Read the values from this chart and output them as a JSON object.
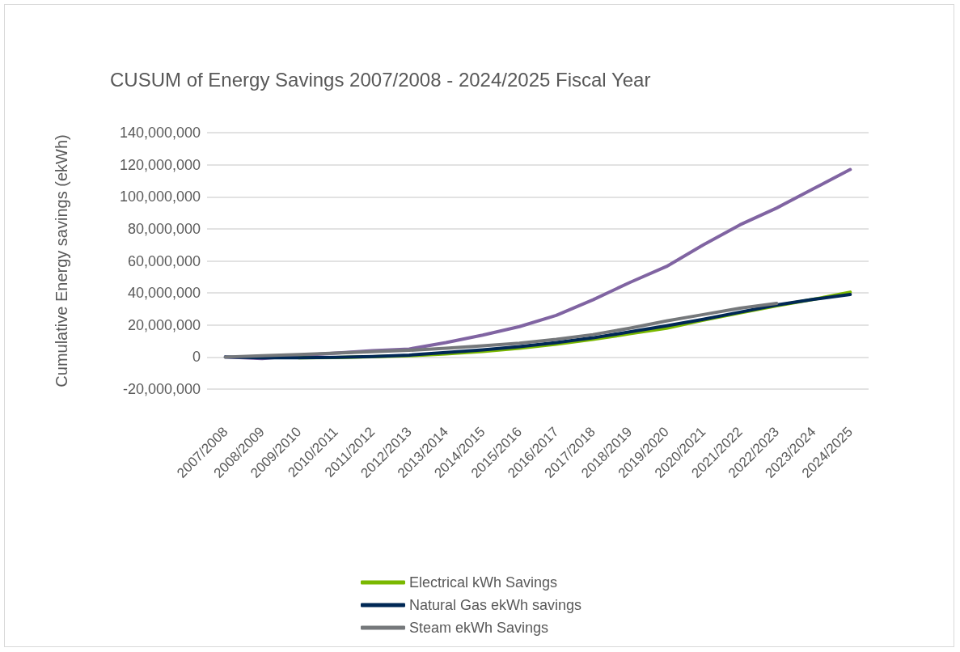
{
  "chart_data": {
    "type": "line",
    "title": "CUSUM of Energy Savings 2007/2008 - 2024/2025 Fiscal Year",
    "ylabel": "Cumulative Energy savings (ekWh)",
    "categories": [
      "2007/2008",
      "2008/2009",
      "2009/2010",
      "2010/2011",
      "2011/2012",
      "2012/2013",
      "2013/2014",
      "2014/2015",
      "2015/2016",
      "2016/2017",
      "2017/2018",
      "2018/2019",
      "2019/2020",
      "2020/2021",
      "2021/2022",
      "2022/2023",
      "2023/2024",
      "2024/2025"
    ],
    "series": [
      {
        "name": "Electrical kWh Savings",
        "color": "#7ab800",
        "values": [
          null,
          null,
          -500000,
          -300000,
          200000,
          800000,
          2000000,
          3500000,
          5500000,
          8000000,
          11000000,
          14500000,
          18000000,
          23000000,
          27500000,
          32000000,
          36000000,
          40500000
        ]
      },
      {
        "name": "Natural Gas ekWh savings",
        "color": "#002855",
        "values": [
          0,
          -500000,
          -400000,
          -200000,
          300000,
          1200000,
          2800000,
          4500000,
          6500000,
          9000000,
          12000000,
          15700000,
          19500000,
          23500000,
          28000000,
          32500000,
          36000000,
          39000000
        ]
      },
      {
        "name": "Steam ekWh Savings",
        "color": "#75787b",
        "values": [
          0,
          800000,
          1600000,
          2500000,
          3300000,
          4200000,
          5500000,
          7000000,
          8700000,
          11000000,
          14000000,
          18000000,
          22500000,
          26500000,
          30500000,
          33500000,
          null,
          null
        ]
      },
      {
        "color": "#8064a2",
        "values": [
          0,
          -1000000,
          1000000,
          2500000,
          4000000,
          5000000,
          9000000,
          13700000,
          19000000,
          26000000,
          35700000,
          46500000,
          56500000,
          70000000,
          82500000,
          93000000,
          105000000,
          117000000
        ]
      }
    ],
    "ylim": [
      -20000000,
      140000000
    ],
    "yticks": [
      {
        "value": -20000000,
        "label": "-20,000,000"
      },
      0,
      {
        "value": 20000000,
        "label": "20,000,000"
      },
      {
        "value": 40000000,
        "label": "40,000,000"
      },
      {
        "value": 60000000,
        "label": "60,000,000"
      },
      {
        "value": 80000000,
        "label": "80,000,000"
      },
      {
        "value": 100000000,
        "label": "100,000,000"
      },
      {
        "value": 120000000,
        "label": "120,000,000"
      },
      {
        "value": 140000000,
        "label": "140,000,000"
      }
    ],
    "grid": "y",
    "legend": "bottom",
    "marker": "none",
    "line_style": "solid"
  }
}
